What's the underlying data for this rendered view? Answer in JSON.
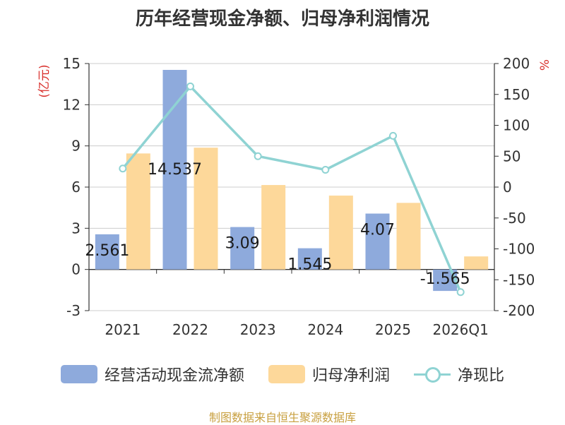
{
  "chart_data": {
    "type": "bar",
    "title": "历年经营现金净额、归母净利润情况",
    "categories": [
      "2021",
      "2022",
      "2023",
      "2024",
      "2025",
      "2026Q1"
    ],
    "y_left": {
      "unit": "(亿元)",
      "ylim": [
        -3,
        15
      ],
      "ticks": [
        -3,
        0,
        3,
        6,
        9,
        12,
        15
      ]
    },
    "y_right": {
      "unit": "%",
      "ylim": [
        -200,
        200
      ],
      "ticks": [
        -200,
        -150,
        -100,
        -50,
        0,
        50,
        100,
        150,
        200
      ]
    },
    "series": [
      {
        "name": "经营活动现金流净额",
        "type": "bar",
        "axis": "left",
        "color": "#8eaadc",
        "values": [
          2.561,
          14.537,
          3.09,
          1.545,
          4.07,
          -1.565
        ],
        "labels": [
          "2.561",
          "14.537",
          "3.09",
          "1.545",
          "4.07",
          "-1.565"
        ]
      },
      {
        "name": "归母净利润",
        "type": "bar",
        "axis": "left",
        "color": "#fdd89a",
        "values": [
          8.45,
          8.87,
          6.15,
          5.38,
          4.85,
          0.95
        ]
      },
      {
        "name": "净现比",
        "type": "line",
        "axis": "right",
        "color": "#8fd3d3",
        "values": [
          30,
          163,
          50,
          28,
          83,
          -170
        ]
      }
    ],
    "grid": true,
    "legend_position": "bottom"
  },
  "source": "制图数据来自恒生聚源数据库"
}
